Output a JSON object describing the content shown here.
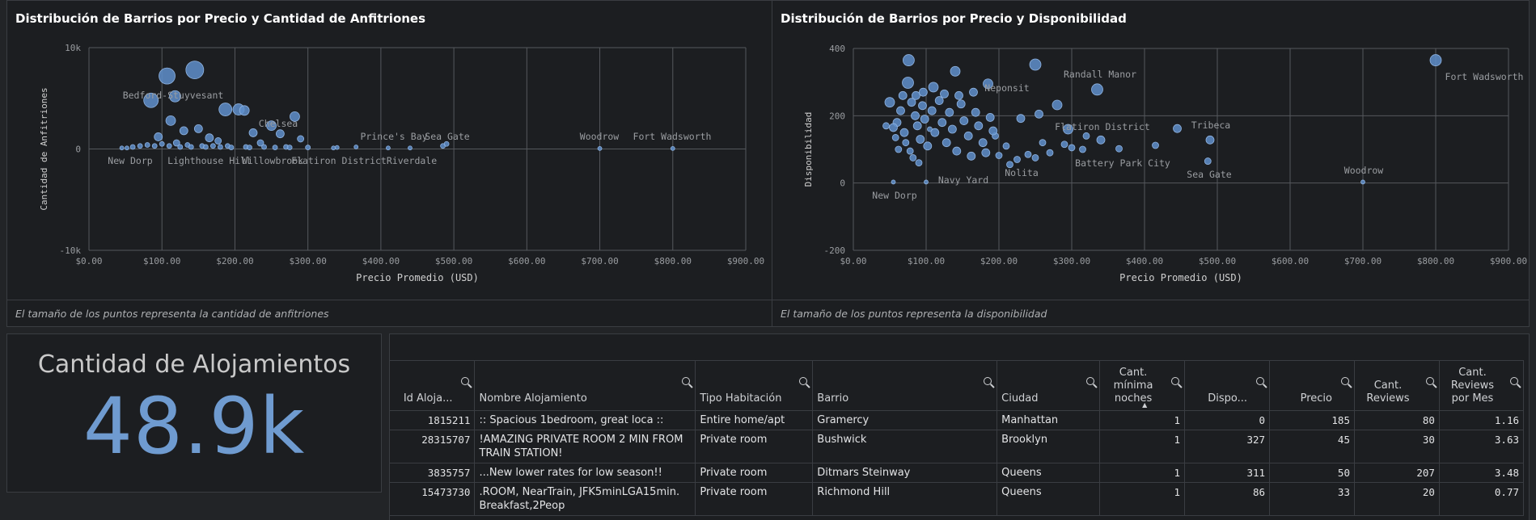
{
  "chart1": {
    "title": "Distribución de Barrios por Precio y Cantidad de Anfitriones",
    "footnote": "El tamaño de los puntos representa la cantidad de anfitriones",
    "chart_data": {
      "type": "scatter",
      "xlabel": "Precio Promedio (USD)",
      "ylabel": "Cantidad de Anfitriones",
      "xlim": [
        0,
        900
      ],
      "ylim": [
        -10000,
        10000
      ],
      "x_ticks": [
        "$0.00",
        "$100.00",
        "$200.00",
        "$300.00",
        "$400.00",
        "$500.00",
        "$600.00",
        "$700.00",
        "$800.00",
        "$900.00"
      ],
      "y_ticks": [
        "10k",
        "0",
        "-10k"
      ],
      "grid": true,
      "points": [
        {
          "x": 85,
          "y": 4800,
          "s": 9
        },
        {
          "x": 107,
          "y": 7200,
          "s": 10
        },
        {
          "x": 145,
          "y": 7800,
          "s": 11
        },
        {
          "x": 118,
          "y": 5200,
          "s": 7
        },
        {
          "x": 112,
          "y": 2800,
          "s": 6
        },
        {
          "x": 130,
          "y": 1800,
          "s": 5
        },
        {
          "x": 150,
          "y": 2000,
          "s": 5
        },
        {
          "x": 187,
          "y": 3900,
          "s": 8
        },
        {
          "x": 205,
          "y": 3900,
          "s": 7
        },
        {
          "x": 213,
          "y": 3800,
          "s": 6
        },
        {
          "x": 225,
          "y": 1600,
          "s": 5
        },
        {
          "x": 250,
          "y": 2300,
          "s": 6
        },
        {
          "x": 262,
          "y": 1500,
          "s": 5
        },
        {
          "x": 282,
          "y": 3200,
          "s": 6
        },
        {
          "x": 290,
          "y": 1000,
          "s": 4
        },
        {
          "x": 95,
          "y": 1200,
          "s": 5
        },
        {
          "x": 165,
          "y": 1100,
          "s": 5
        },
        {
          "x": 177,
          "y": 800,
          "s": 4
        },
        {
          "x": 235,
          "y": 600,
          "s": 4
        },
        {
          "x": 120,
          "y": 600,
          "s": 4
        },
        {
          "x": 60,
          "y": 200,
          "s": 3
        },
        {
          "x": 70,
          "y": 300,
          "s": 3
        },
        {
          "x": 80,
          "y": 400,
          "s": 3
        },
        {
          "x": 90,
          "y": 300,
          "s": 3
        },
        {
          "x": 100,
          "y": 500,
          "s": 3
        },
        {
          "x": 110,
          "y": 300,
          "s": 3
        },
        {
          "x": 125,
          "y": 200,
          "s": 3
        },
        {
          "x": 135,
          "y": 400,
          "s": 3
        },
        {
          "x": 140,
          "y": 200,
          "s": 3
        },
        {
          "x": 155,
          "y": 300,
          "s": 3
        },
        {
          "x": 160,
          "y": 200,
          "s": 3
        },
        {
          "x": 170,
          "y": 300,
          "s": 3
        },
        {
          "x": 180,
          "y": 200,
          "s": 3
        },
        {
          "x": 190,
          "y": 300,
          "s": 3
        },
        {
          "x": 195,
          "y": 150,
          "s": 3
        },
        {
          "x": 215,
          "y": 200,
          "s": 3
        },
        {
          "x": 220,
          "y": 150,
          "s": 3
        },
        {
          "x": 240,
          "y": 200,
          "s": 3
        },
        {
          "x": 255,
          "y": 150,
          "s": 3
        },
        {
          "x": 270,
          "y": 200,
          "s": 3
        },
        {
          "x": 275,
          "y": 150,
          "s": 3
        },
        {
          "x": 300,
          "y": 150,
          "s": 3
        },
        {
          "x": 45,
          "y": 100,
          "s": 2.5
        },
        {
          "x": 52,
          "y": 100,
          "s": 2.5
        },
        {
          "x": 335,
          "y": 100,
          "s": 2.5
        },
        {
          "x": 340,
          "y": 150,
          "s": 2.5
        },
        {
          "x": 366,
          "y": 200,
          "s": 2.5
        },
        {
          "x": 410,
          "y": 100,
          "s": 2.5
        },
        {
          "x": 440,
          "y": 100,
          "s": 2.5
        },
        {
          "x": 485,
          "y": 300,
          "s": 3
        },
        {
          "x": 490,
          "y": 500,
          "s": 3
        },
        {
          "x": 700,
          "y": 50,
          "s": 2.5
        },
        {
          "x": 800,
          "y": 50,
          "s": 2.5
        }
      ],
      "annotations": [
        "Bedford-Stuyvesant",
        "Chelsea",
        "Prince's Bay",
        "Sea Gate",
        "Woodrow",
        "Fort Wadsworth",
        "New Dorp",
        "Lighthouse Hill",
        "Willowbrook",
        "Flatiron District",
        "Riverdale"
      ]
    }
  },
  "chart2": {
    "title": "Distribución de Barrios por Precio y Disponibilidad",
    "footnote": "El tamaño de los puntos representa la disponibilidad",
    "chart_data": {
      "type": "scatter",
      "xlabel": "Precio Promedio (USD)",
      "ylabel": "Disponibilidad",
      "xlim": [
        0,
        900
      ],
      "ylim": [
        -200,
        400
      ],
      "x_ticks": [
        "$0.00",
        "$100.00",
        "$200.00",
        "$300.00",
        "$400.00",
        "$500.00",
        "$600.00",
        "$700.00",
        "$800.00",
        "$900.00"
      ],
      "y_ticks": [
        "400",
        "200",
        "0",
        "-200"
      ],
      "grid": true,
      "points": [
        {
          "x": 76,
          "y": 365,
          "s": 7
        },
        {
          "x": 140,
          "y": 332,
          "s": 6
        },
        {
          "x": 250,
          "y": 352,
          "s": 7
        },
        {
          "x": 335,
          "y": 278,
          "s": 7
        },
        {
          "x": 800,
          "y": 365,
          "s": 7
        },
        {
          "x": 75,
          "y": 298,
          "s": 7
        },
        {
          "x": 110,
          "y": 285,
          "s": 6
        },
        {
          "x": 185,
          "y": 295,
          "s": 6
        },
        {
          "x": 165,
          "y": 270,
          "s": 5
        },
        {
          "x": 280,
          "y": 232,
          "s": 6
        },
        {
          "x": 230,
          "y": 192,
          "s": 5
        },
        {
          "x": 255,
          "y": 205,
          "s": 5
        },
        {
          "x": 295,
          "y": 160,
          "s": 6
        },
        {
          "x": 340,
          "y": 128,
          "s": 5
        },
        {
          "x": 365,
          "y": 102,
          "s": 4
        },
        {
          "x": 415,
          "y": 112,
          "s": 4
        },
        {
          "x": 445,
          "y": 162,
          "s": 5
        },
        {
          "x": 490,
          "y": 128,
          "s": 5
        },
        {
          "x": 487,
          "y": 65,
          "s": 4
        },
        {
          "x": 700,
          "y": 3,
          "s": 2.5
        },
        {
          "x": 55,
          "y": 3,
          "s": 2.5
        },
        {
          "x": 100,
          "y": 3,
          "s": 2.5
        },
        {
          "x": 105,
          "y": 160,
          "s": 3
        },
        {
          "x": 195,
          "y": 140,
          "s": 4
        },
        {
          "x": 210,
          "y": 110,
          "s": 4
        },
        {
          "x": 225,
          "y": 70,
          "s": 4
        },
        {
          "x": 240,
          "y": 85,
          "s": 4
        },
        {
          "x": 260,
          "y": 120,
          "s": 4
        },
        {
          "x": 270,
          "y": 90,
          "s": 4
        },
        {
          "x": 290,
          "y": 115,
          "s": 4
        },
        {
          "x": 300,
          "y": 105,
          "s": 4
        },
        {
          "x": 315,
          "y": 100,
          "s": 4
        },
        {
          "x": 320,
          "y": 140,
          "s": 4
        },
        {
          "x": 250,
          "y": 75,
          "s": 4
        },
        {
          "x": 200,
          "y": 82,
          "s": 4
        },
        {
          "x": 215,
          "y": 55,
          "s": 4
        },
        {
          "x": 60,
          "y": 180,
          "s": 5
        },
        {
          "x": 65,
          "y": 215,
          "s": 5
        },
        {
          "x": 70,
          "y": 150,
          "s": 5
        },
        {
          "x": 80,
          "y": 240,
          "s": 5
        },
        {
          "x": 85,
          "y": 200,
          "s": 5
        },
        {
          "x": 88,
          "y": 170,
          "s": 5
        },
        {
          "x": 92,
          "y": 130,
          "s": 5
        },
        {
          "x": 95,
          "y": 230,
          "s": 5
        },
        {
          "x": 98,
          "y": 190,
          "s": 5
        },
        {
          "x": 102,
          "y": 110,
          "s": 5
        },
        {
          "x": 108,
          "y": 215,
          "s": 5
        },
        {
          "x": 112,
          "y": 150,
          "s": 5
        },
        {
          "x": 118,
          "y": 245,
          "s": 5
        },
        {
          "x": 122,
          "y": 180,
          "s": 5
        },
        {
          "x": 128,
          "y": 120,
          "s": 5
        },
        {
          "x": 132,
          "y": 210,
          "s": 5
        },
        {
          "x": 136,
          "y": 160,
          "s": 5
        },
        {
          "x": 142,
          "y": 95,
          "s": 5
        },
        {
          "x": 148,
          "y": 235,
          "s": 5
        },
        {
          "x": 152,
          "y": 185,
          "s": 5
        },
        {
          "x": 158,
          "y": 140,
          "s": 5
        },
        {
          "x": 162,
          "y": 80,
          "s": 5
        },
        {
          "x": 168,
          "y": 210,
          "s": 5
        },
        {
          "x": 172,
          "y": 170,
          "s": 5
        },
        {
          "x": 178,
          "y": 120,
          "s": 5
        },
        {
          "x": 182,
          "y": 90,
          "s": 5
        },
        {
          "x": 188,
          "y": 195,
          "s": 5
        },
        {
          "x": 192,
          "y": 155,
          "s": 5
        },
        {
          "x": 72,
          "y": 120,
          "s": 4
        },
        {
          "x": 78,
          "y": 95,
          "s": 4
        },
        {
          "x": 82,
          "y": 75,
          "s": 4
        },
        {
          "x": 90,
          "y": 60,
          "s": 4
        },
        {
          "x": 55,
          "y": 165,
          "s": 5
        },
        {
          "x": 58,
          "y": 135,
          "s": 4
        },
        {
          "x": 62,
          "y": 100,
          "s": 4
        },
        {
          "x": 68,
          "y": 260,
          "s": 5
        },
        {
          "x": 86,
          "y": 260,
          "s": 5
        },
        {
          "x": 96,
          "y": 270,
          "s": 5
        },
        {
          "x": 125,
          "y": 265,
          "s": 5
        },
        {
          "x": 145,
          "y": 260,
          "s": 5
        },
        {
          "x": 50,
          "y": 240,
          "s": 6
        },
        {
          "x": 45,
          "y": 170,
          "s": 4
        }
      ],
      "annotations": [
        "Fort Wadsworth",
        "Randall Manor",
        "Neponsit",
        "Flatiron District",
        "Tribeca",
        "Battery Park City",
        "Sea Gate",
        "Nolita",
        "Navy Yard",
        "New Dorp",
        "Woodrow"
      ]
    }
  },
  "kpi": {
    "title": "Cantidad de Alojamientos",
    "value": "48.9k"
  },
  "table": {
    "columns": [
      "Id Aloja...",
      "Nombre Alojamiento",
      "Tipo Habitación",
      "Barrio",
      "Ciudad",
      "Cant. mínima noches",
      "Dispo...",
      "Precio",
      "Cant. Reviews",
      "Cant. Reviews por Mes"
    ],
    "rows": [
      [
        "1815211",
        ":: Spacious 1bedroom, great loca ::",
        "Entire home/apt",
        "Gramercy",
        "Manhattan",
        "1",
        "0",
        "185",
        "80",
        "1.16"
      ],
      [
        "28315707",
        "!AMAZING PRIVATE ROOM 2 MIN FROM TRAIN STATION!",
        "Private room",
        "Bushwick",
        "Brooklyn",
        "1",
        "327",
        "45",
        "30",
        "3.63"
      ],
      [
        "3835757",
        "...New lower rates for low season!!",
        "Private room",
        "Ditmars Steinway",
        "Queens",
        "1",
        "311",
        "50",
        "207",
        "3.48"
      ],
      [
        "15473730",
        ".ROOM, NearTrain, JFK5minLGA15min. Breakfast,2Peop",
        "Private room",
        "Richmond Hill",
        "Queens",
        "1",
        "86",
        "33",
        "20",
        "0.77"
      ]
    ]
  }
}
